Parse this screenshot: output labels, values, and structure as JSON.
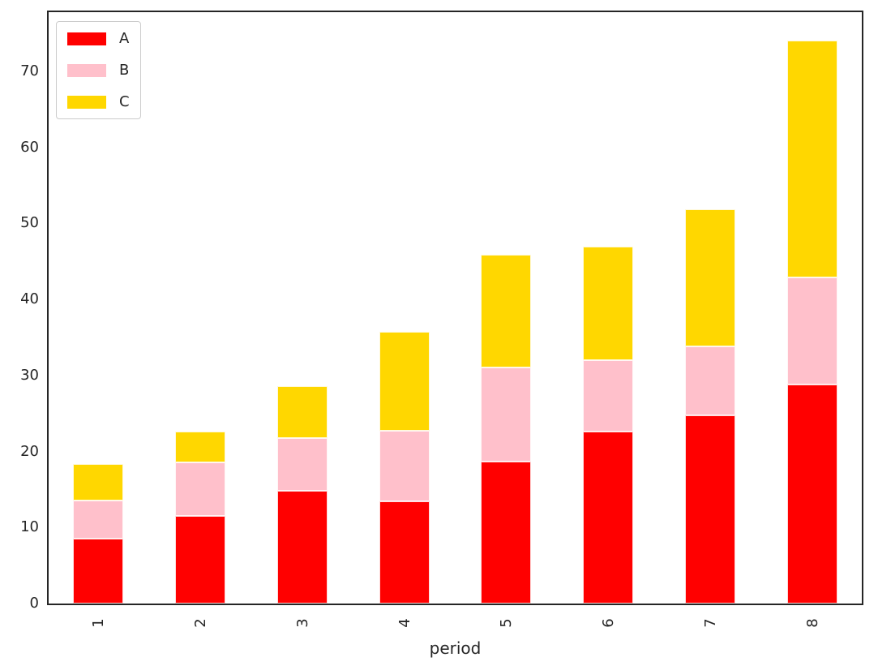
{
  "chart_data": {
    "type": "bar",
    "stacked": true,
    "title": "",
    "xlabel": "period",
    "ylabel": "",
    "categories": [
      "1",
      "2",
      "3",
      "4",
      "5",
      "6",
      "7",
      "8"
    ],
    "series": [
      {
        "name": "A",
        "color": "#ff0000",
        "values": [
          8.5,
          11.5,
          14.8,
          13.4,
          18.7,
          22.6,
          24.8,
          28.8
        ]
      },
      {
        "name": "B",
        "color": "#ffc0cb",
        "values": [
          5.0,
          7.1,
          7.0,
          9.3,
          12.3,
          9.4,
          9.0,
          14.1
        ]
      },
      {
        "name": "C",
        "color": "#ffd700",
        "values": [
          4.9,
          4.0,
          6.8,
          13.0,
          14.9,
          14.9,
          18.1,
          31.1
        ]
      }
    ],
    "stack_totals": [
      18.4,
      22.6,
      28.6,
      35.7,
      45.9,
      46.9,
      51.9,
      74.0
    ],
    "yticks": [
      0,
      10,
      20,
      30,
      40,
      50,
      60,
      70
    ],
    "ylim": [
      0,
      78
    ],
    "xtick_rotation_deg": 90,
    "grid": false,
    "legend_position": "upper left",
    "axis_color": "#262626",
    "text_color": "#262626",
    "background_color": "#ffffff"
  }
}
